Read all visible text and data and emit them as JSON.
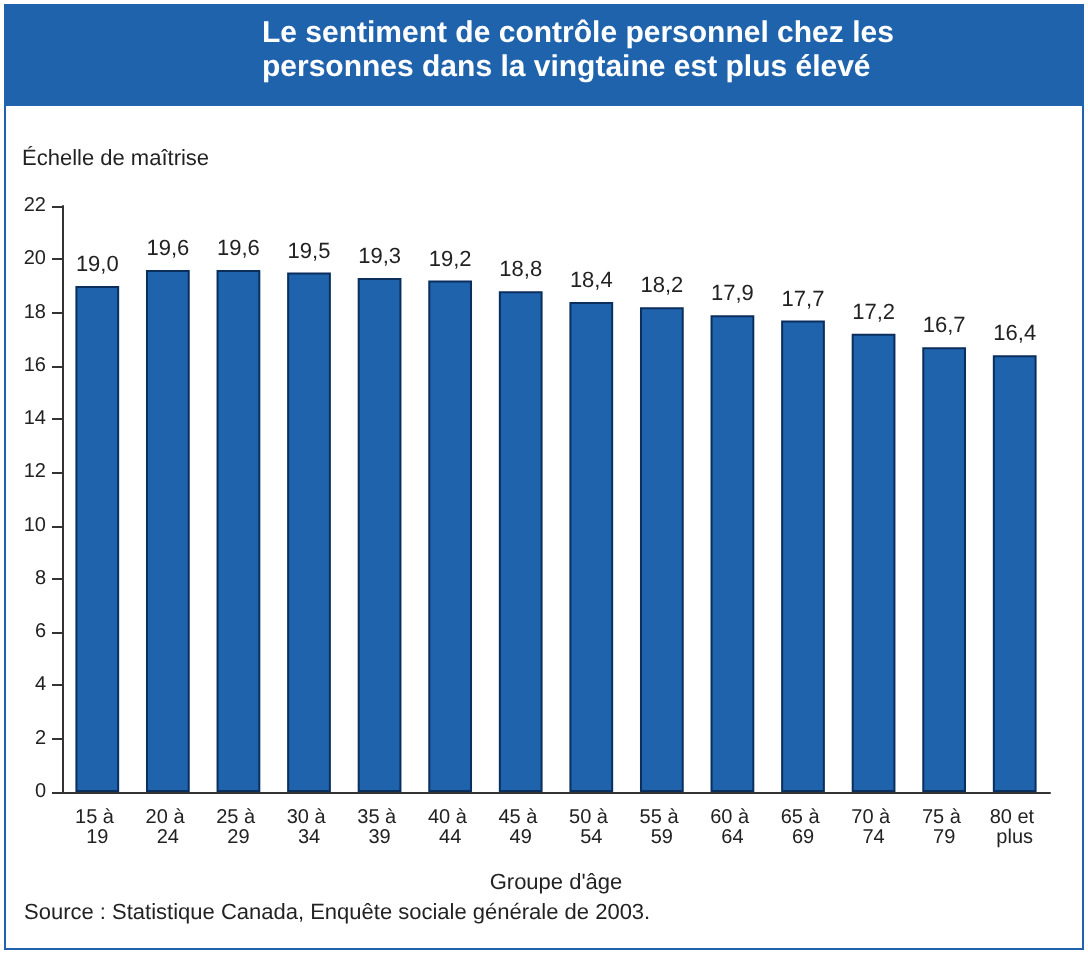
{
  "chart_data": {
    "type": "bar",
    "title": "Le sentiment de contrôle personnel chez les personnes dans la vingtaine est plus élevé",
    "ylabel": "Échelle de maîtrise",
    "xlabel": "Groupe d'âge",
    "annotations": [
      "Source : Statistique Canada, Enquête sociale générale de 2003."
    ],
    "categories": [
      "15 à 19",
      "20 à 24",
      "25 à 29",
      "30 à 34",
      "35 à 39",
      "40 à 44",
      "45 à 49",
      "50 à 54",
      "55 à 59",
      "60 à 64",
      "65 à 69",
      "70 à 74",
      "75 à 79",
      "80 et plus"
    ],
    "values": [
      19.0,
      19.6,
      19.6,
      19.5,
      19.3,
      19.2,
      18.8,
      18.4,
      18.2,
      17.9,
      17.7,
      17.2,
      16.7,
      16.4
    ],
    "value_labels": [
      "19,0",
      "19,6",
      "19,6",
      "19,5",
      "19,3",
      "19,2",
      "18,8",
      "18,4",
      "18,2",
      "17,9",
      "17,7",
      "17,2",
      "16,7",
      "16,4"
    ],
    "color": "#1f63ad",
    "ylim": [
      0,
      22
    ],
    "yticks": [
      0,
      2,
      4,
      6,
      8,
      10,
      12,
      14,
      16,
      18,
      20,
      22
    ],
    "grid": false
  }
}
